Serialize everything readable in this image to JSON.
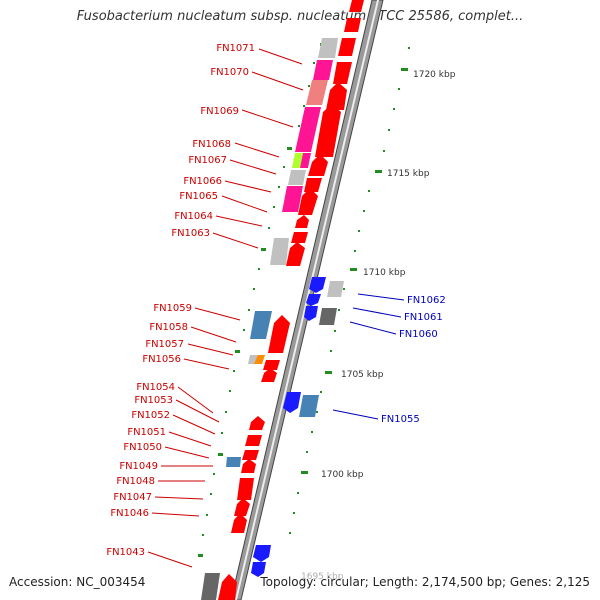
{
  "title": "Fusobacterium nucleatum subsp. nucleatum ATCC 25586, complet...",
  "accession": "Accession: NC_003454",
  "summary": "Topology: circular; Length: 2,174,500 bp; Genes: 2,125",
  "kbp_labels": [
    "1720 kbp",
    "1715 kbp",
    "1710 kbp",
    "1705 kbp",
    "1700 kbp",
    "1695 kbp"
  ],
  "gene_labels": [
    "FN1071",
    "FN1070",
    "FN1069",
    "FN1068",
    "FN1067",
    "FN1066",
    "FN1065",
    "FN1064",
    "FN1063",
    "FN1059",
    "FN1058",
    "FN1057",
    "FN1056",
    "FN1054",
    "FN1053",
    "FN1052",
    "FN1051",
    "FN1050",
    "FN1049",
    "FN1048",
    "FN1047",
    "FN1046",
    "FN1043",
    "FN1062",
    "FN1061",
    "FN1060",
    "FN1055"
  ],
  "colors": {
    "forward_cds": "#ff0000",
    "reverse_cds": "#1a1aff",
    "forward_label": "#cc0000",
    "reverse_label": "#0000bb",
    "pink": "#ff1493",
    "salmon": "#f08080",
    "grey": "#c0c0c0",
    "steel_blue": "#4682b4",
    "lime": "#adff2f",
    "orange": "#ff8c00",
    "tick": "#228b22"
  }
}
